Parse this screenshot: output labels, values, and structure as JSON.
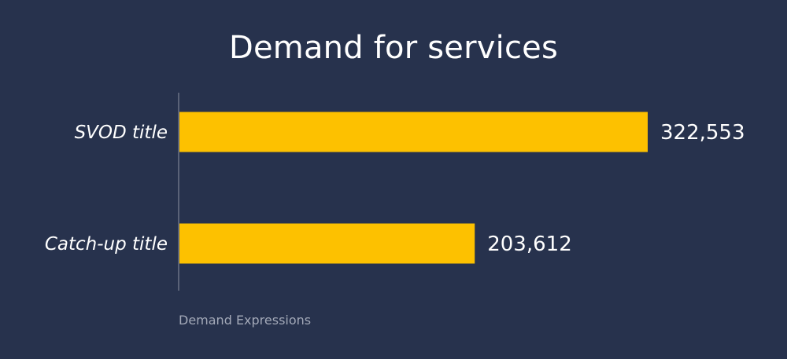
{
  "chart_data": {
    "type": "bar",
    "orientation": "horizontal",
    "title": "Demand for services",
    "xlabel": "Demand Expressions",
    "ylabel": "",
    "categories": [
      "SVOD title",
      "Catch-up title"
    ],
    "values": [
      322553,
      203612
    ],
    "value_labels": [
      "322,553",
      "203,612"
    ],
    "xlim": [
      0,
      322553
    ],
    "grid": false,
    "legend": "none",
    "colors": {
      "background": "#27324d",
      "bar": "#fdc100",
      "text": "#ffffff",
      "axis_line": "#6b7285",
      "axis_label": "#a3a9b8"
    }
  }
}
